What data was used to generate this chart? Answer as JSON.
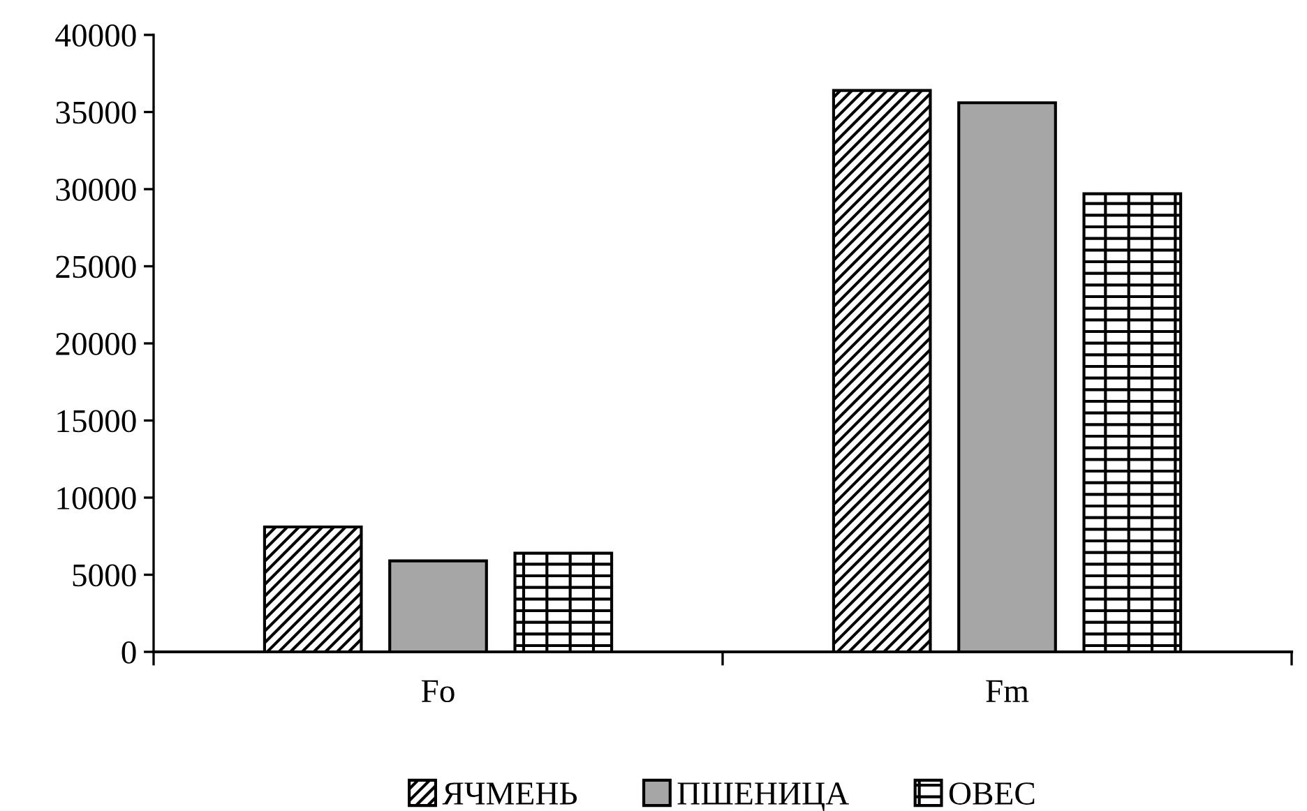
{
  "chart_data": {
    "type": "bar",
    "categories": [
      "Fo",
      "Fm"
    ],
    "series": [
      {
        "name": "ЯЧМЕНЬ",
        "color": "#000000",
        "values": [
          8100,
          36400
        ]
      },
      {
        "name": "ПШЕНИЦА",
        "color": "#a6a6a6",
        "values": [
          5900,
          35600
        ]
      },
      {
        "name": "ОВЕС",
        "color": "#000000",
        "values": [
          6400,
          29700
        ]
      }
    ],
    "ylim": [
      0,
      40000
    ],
    "yticks": [
      0,
      5000,
      10000,
      15000,
      20000,
      25000,
      30000,
      35000,
      40000
    ],
    "grid": false,
    "legend": "bottom"
  }
}
